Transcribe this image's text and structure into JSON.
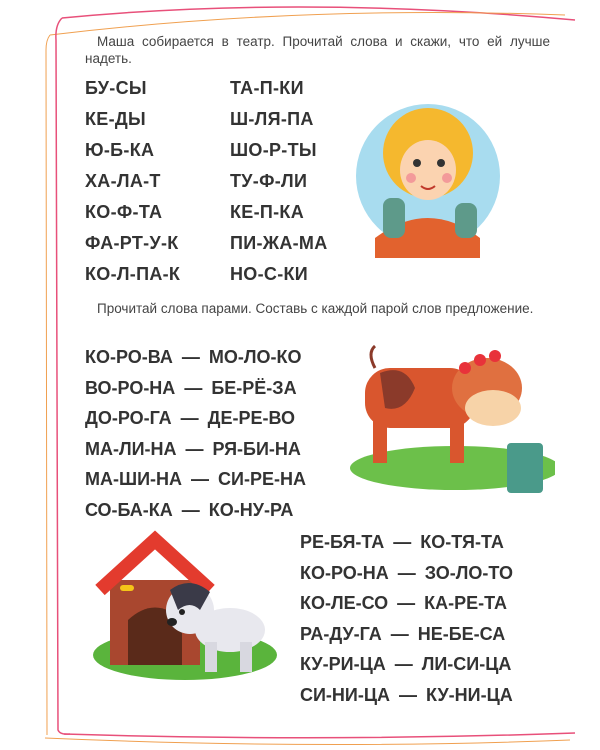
{
  "section1": {
    "instruction": "Маша собирается в театр. Прочитай слова и скажи, что ей лучше надеть.",
    "left_words": [
      "БУ-СЫ",
      "КЕ-ДЫ",
      "Ю-Б-КА",
      "ХА-ЛА-Т",
      "КО-Ф-ТА",
      "ФА-РТ-У-К",
      "КО-Л-ПА-К"
    ],
    "right_words": [
      "ТА-П-КИ",
      "Ш-ЛЯ-ПА",
      "ШО-Р-ТЫ",
      "ТУ-Ф-ЛИ",
      "КЕ-П-КА",
      "ПИ-ЖА-МА",
      "НО-С-КИ"
    ]
  },
  "section2": {
    "instruction": "Прочитай слова парами. Составь с каждой парой слов предложение.",
    "dash": "—",
    "pairs_top": [
      [
        "КО-РО-ВА",
        "МО-ЛО-КО"
      ],
      [
        "ВО-РО-НА",
        "БЕ-РЁ-ЗА"
      ],
      [
        "ДО-РО-ГА",
        "ДЕ-РЕ-ВО"
      ],
      [
        "МА-ЛИ-НА",
        "РЯ-БИ-НА"
      ],
      [
        "МА-ШИ-НА",
        "СИ-РЕ-НА"
      ],
      [
        "СО-БА-КА",
        "КО-НУ-РА"
      ]
    ],
    "pairs_bottom": [
      [
        "РЕ-БЯ-ТА",
        "КО-ТЯ-ТА"
      ],
      [
        "КО-РО-НА",
        "ЗО-ЛО-ТО"
      ],
      [
        "КО-ЛЕ-СО",
        "КА-РЕ-ТА"
      ],
      [
        "РА-ДУ-ГА",
        "НЕ-БЕ-СА"
      ],
      [
        "КУ-РИ-ЦА",
        "ЛИ-СИ-ЦА"
      ],
      [
        "СИ-НИ-ЦА",
        "КУ-НИ-ЦА"
      ]
    ]
  },
  "colors": {
    "border_pink": "#e8507a",
    "border_orange": "#f0a050",
    "text": "#333333",
    "circle": "#a8dcef"
  }
}
